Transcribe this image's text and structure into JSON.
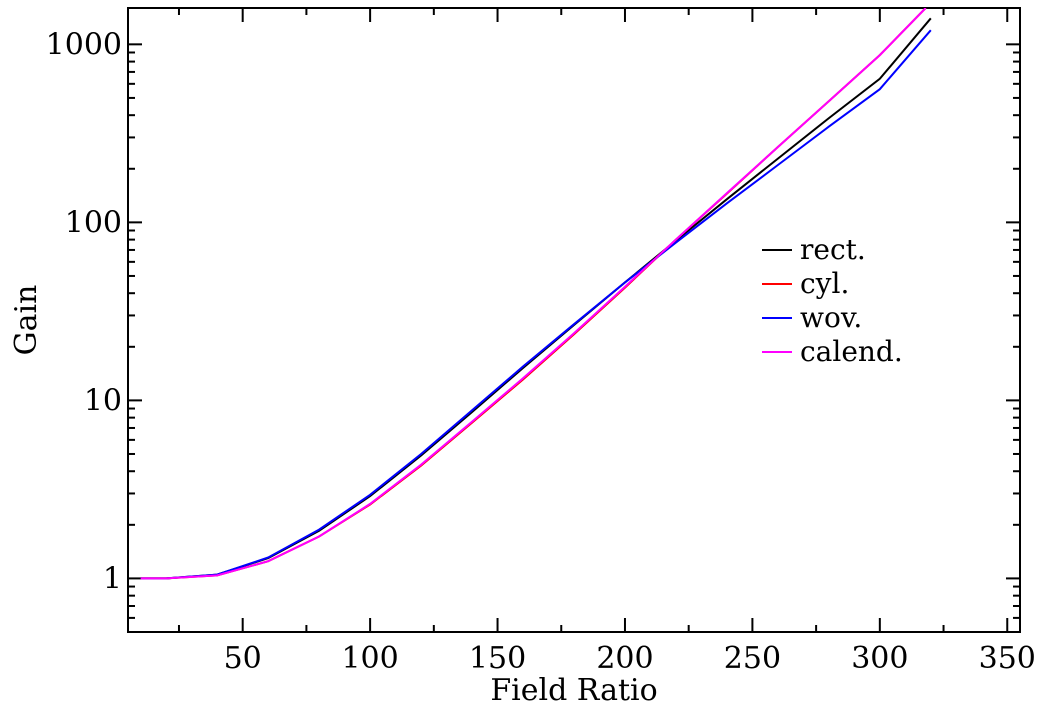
{
  "chart_data": {
    "type": "line",
    "xlabel": "Field Ratio",
    "ylabel": "Gain",
    "xlim": [
      5,
      355
    ],
    "ylim": [
      0.5,
      1600
    ],
    "yscale": "log",
    "xticks": [
      50,
      100,
      150,
      200,
      250,
      300,
      350
    ],
    "yticks": [
      1,
      10,
      100,
      1000
    ],
    "grid": false,
    "legend_position": "right",
    "series": [
      {
        "name": "rect.",
        "color": "#000000",
        "x": [
          10,
          20,
          40,
          60,
          80,
          100,
          120,
          140,
          160,
          180,
          200,
          220,
          240,
          260,
          280,
          300,
          320
        ],
        "y": [
          1.0,
          1.0,
          1.05,
          1.3,
          1.85,
          2.9,
          4.9,
          8.6,
          15.2,
          26.5,
          46,
          79,
          135,
          228,
          385,
          640,
          1400
        ]
      },
      {
        "name": "cyl.",
        "color": "#ff0000",
        "x": [
          10,
          20,
          40,
          60,
          80,
          100,
          120,
          140,
          160,
          180,
          200,
          220,
          240,
          260,
          280,
          300,
          318
        ],
        "y": [
          1.0,
          1.0,
          1.04,
          1.25,
          1.72,
          2.6,
          4.3,
          7.5,
          13.1,
          23.5,
          43,
          80,
          145,
          265,
          480,
          870,
          1600
        ]
      },
      {
        "name": "wov.",
        "color": "#0000ff",
        "x": [
          10,
          20,
          40,
          60,
          80,
          100,
          120,
          140,
          160,
          180,
          200,
          220,
          240,
          260,
          280,
          300,
          320
        ],
        "y": [
          1.0,
          1.0,
          1.05,
          1.31,
          1.88,
          2.95,
          5.0,
          8.8,
          15.5,
          26.8,
          46,
          77,
          128,
          210,
          345,
          560,
          1200
        ]
      },
      {
        "name": "calend.",
        "color": "#ff00ff",
        "x": [
          10,
          20,
          40,
          60,
          80,
          100,
          120,
          140,
          160,
          180,
          200,
          220,
          240,
          260,
          280,
          300,
          318
        ],
        "y": [
          1.0,
          1.0,
          1.04,
          1.25,
          1.72,
          2.62,
          4.35,
          7.6,
          13.3,
          23.8,
          43.5,
          80,
          146,
          265,
          480,
          870,
          1600
        ]
      }
    ]
  }
}
